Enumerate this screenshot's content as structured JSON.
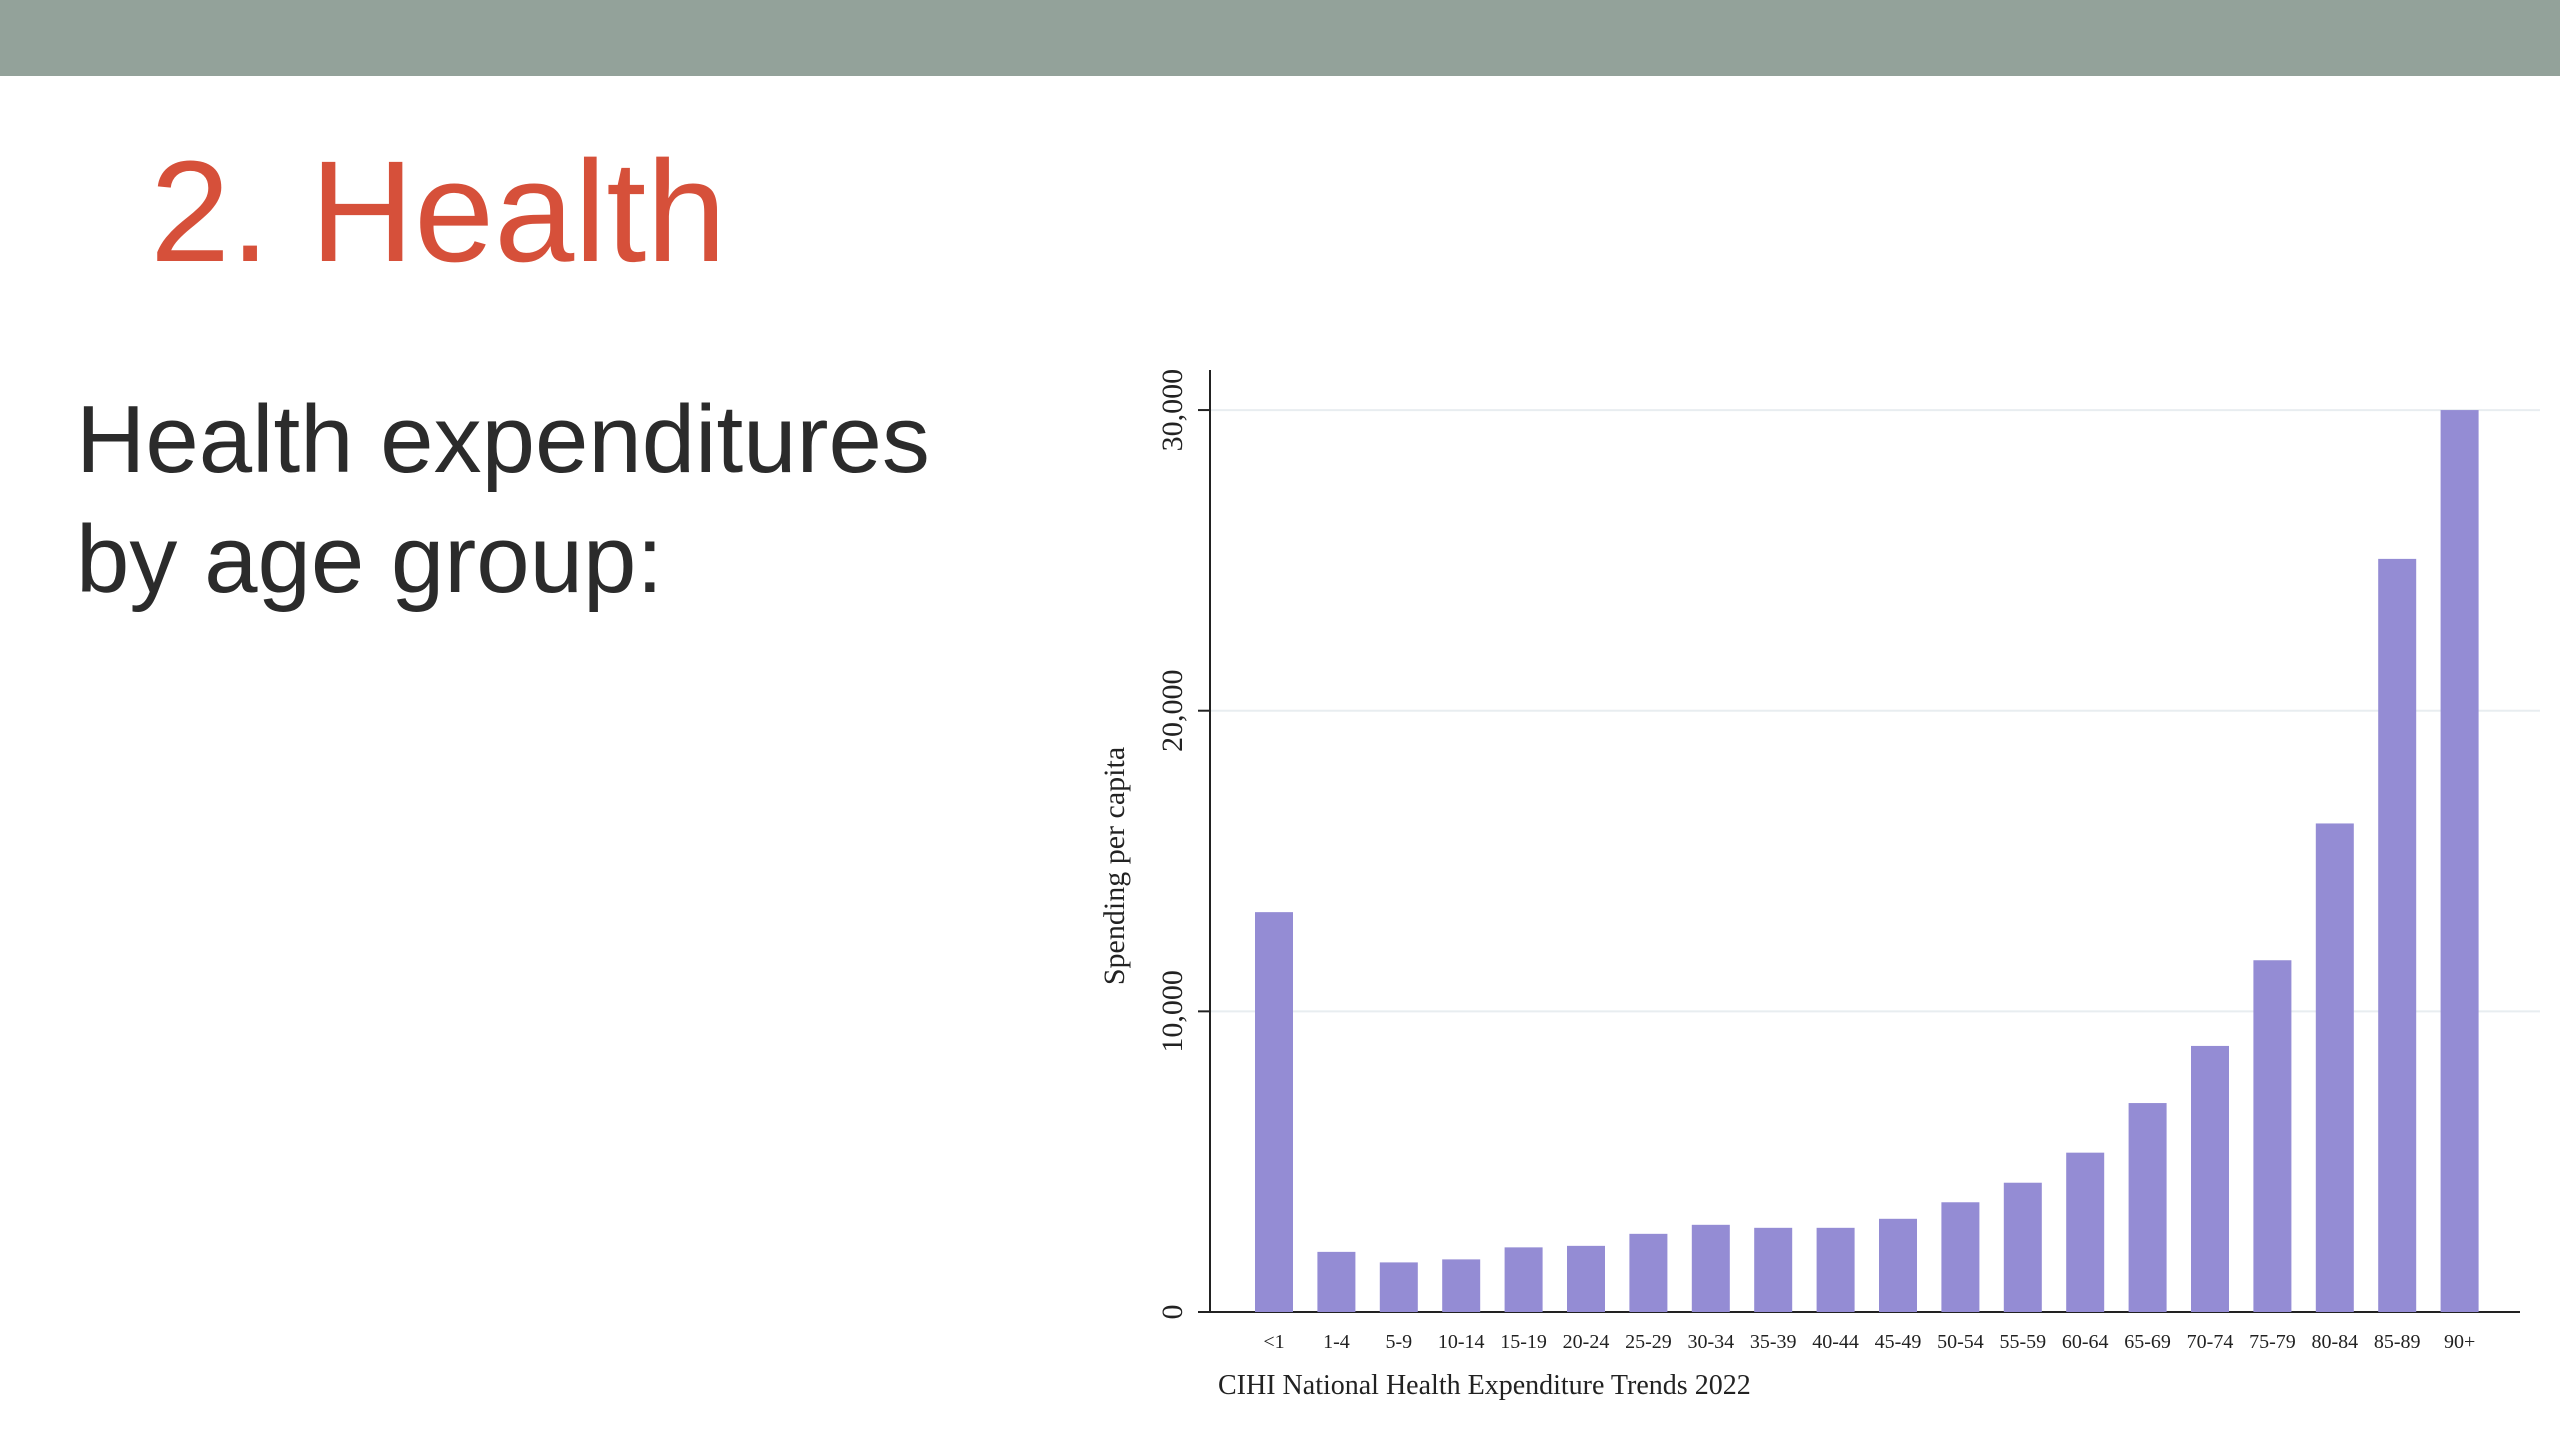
{
  "slide": {
    "title": "2. Health",
    "body_line1": "Health expenditures",
    "body_line2": "by age group:"
  },
  "colors": {
    "top_bar": "#93a29a",
    "title": "#d6503a",
    "bar": "#948cd4",
    "grid": "#e8edf0"
  },
  "chart_data": {
    "type": "bar",
    "categories": [
      "<1",
      "1-4",
      "5-9",
      "10-14",
      "15-19",
      "20-24",
      "25-29",
      "30-34",
      "35-39",
      "40-44",
      "45-49",
      "50-54",
      "55-59",
      "60-64",
      "65-69",
      "70-74",
      "75-79",
      "80-84",
      "85-89",
      "90+"
    ],
    "values": [
      13300,
      2000,
      1650,
      1750,
      2150,
      2200,
      2600,
      2900,
      2800,
      2800,
      3100,
      3650,
      4300,
      5300,
      6950,
      8850,
      11700,
      16250,
      25050,
      30000
    ],
    "title": "",
    "xlabel": "",
    "ylabel": "Spending per capita",
    "ylim": [
      0,
      31000
    ],
    "yticks": [
      0,
      10000,
      20000,
      30000
    ],
    "ytick_labels": [
      "0",
      "10,000",
      "20,000",
      "30,000"
    ],
    "grid": true,
    "source_note": "CIHI National Health Expenditure Trends 2022"
  }
}
